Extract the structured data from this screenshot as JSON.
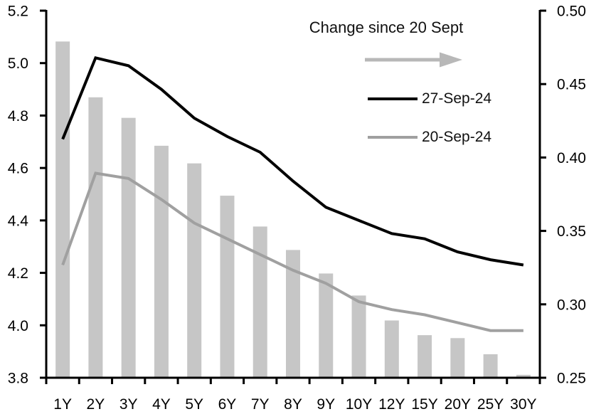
{
  "chart_data": {
    "type": "combo",
    "title": "",
    "categories": [
      "1Y",
      "2Y",
      "3Y",
      "4Y",
      "5Y",
      "6Y",
      "7Y",
      "8Y",
      "9Y",
      "10Y",
      "12Y",
      "15Y",
      "20Y",
      "25Y",
      "30Y"
    ],
    "series": [
      {
        "name": "Change since 20 Sept",
        "type": "bar",
        "axis": "right",
        "color": "#c6c6c6",
        "values": [
          0.479,
          0.441,
          0.427,
          0.408,
          0.396,
          0.374,
          0.353,
          0.337,
          0.321,
          0.306,
          0.289,
          0.279,
          0.277,
          0.266,
          0.252
        ]
      },
      {
        "name": "27-Sep-24",
        "type": "line",
        "axis": "left",
        "color": "#000000",
        "values": [
          4.71,
          5.02,
          4.99,
          4.9,
          4.79,
          4.72,
          4.66,
          4.55,
          4.45,
          4.4,
          4.35,
          4.33,
          4.28,
          4.25,
          4.23
        ]
      },
      {
        "name": "20-Sep-24",
        "type": "line",
        "axis": "left",
        "color": "#a0a0a0",
        "values": [
          4.23,
          4.58,
          4.56,
          4.48,
          4.39,
          4.33,
          4.27,
          4.21,
          4.16,
          4.09,
          4.06,
          4.04,
          4.01,
          3.98,
          3.98
        ]
      }
    ],
    "left_axis": {
      "min": 3.8,
      "max": 5.2,
      "step": 0.2,
      "tick_labels": [
        "5.2",
        "5.0",
        "4.8",
        "4.6",
        "4.4",
        "4.2",
        "4.0",
        "3.8"
      ]
    },
    "right_axis": {
      "min": 0.25,
      "max": 0.5,
      "step": 0.05,
      "tick_labels": [
        "0.50",
        "0.45",
        "0.40",
        "0.35",
        "0.30",
        "0.25"
      ]
    },
    "legend": {
      "title": "Change since 20 Sept",
      "arrow_icon": "right-arrow",
      "arrow_color": "#b8b8b8",
      "items": [
        {
          "label": "27-Sep-24",
          "color": "#000000"
        },
        {
          "label": "20-Sep-24",
          "color": "#a0a0a0"
        }
      ]
    },
    "grid": false,
    "legend_position": "inside-top-right",
    "axis_color": "#000000"
  }
}
